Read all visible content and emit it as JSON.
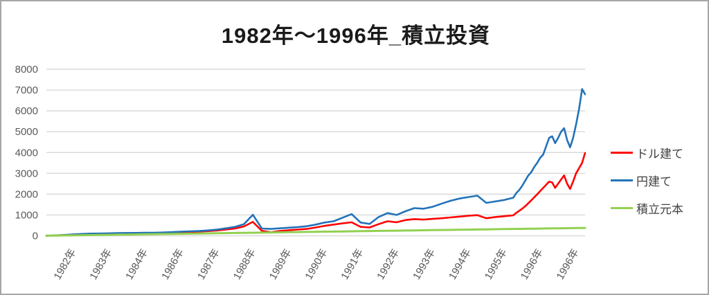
{
  "title": "1982年〜1996年_積立投資",
  "colors": {
    "grid": "#d9d9d9",
    "axis_text": "#595959",
    "title_text": "#1a1a1a",
    "frame_border": "#a6a6a6"
  },
  "legend": {
    "items": [
      "ドル建て",
      "円建て",
      "積立元本"
    ]
  },
  "chart_data": {
    "type": "line",
    "title": "1982年〜1996年_積立投資",
    "xlabel": "",
    "ylabel": "",
    "ylim": [
      0,
      8000
    ],
    "y_ticks": [
      0,
      1000,
      2000,
      3000,
      4000,
      5000,
      6000,
      7000,
      8000
    ],
    "x_tick_labels": [
      "1982年",
      "1983年",
      "1984年",
      "1986年",
      "1987年",
      "1988年",
      "1989年",
      "1990年",
      "1991年",
      "1992年",
      "1993年",
      "1994年",
      "1995年",
      "1996年",
      "1996年"
    ],
    "x_axis_note": "monthly cumulative investment Jan 1982 - Dec 1996, x_months is month index 0-180",
    "grid": true,
    "legend_position": "right",
    "x_months": [
      0,
      3,
      6,
      9,
      12,
      15,
      18,
      21,
      24,
      27,
      30,
      33,
      36,
      39,
      42,
      45,
      48,
      51,
      54,
      57,
      60,
      63,
      66,
      69,
      72,
      75,
      78,
      81,
      84,
      87,
      90,
      93,
      96,
      99,
      102,
      105,
      108,
      111,
      114,
      117,
      120,
      123,
      126,
      129,
      132,
      135,
      138,
      141,
      144,
      147,
      150,
      153,
      156,
      157,
      158,
      159,
      160,
      161,
      162,
      163,
      164,
      165,
      166,
      167,
      168,
      169,
      170,
      171,
      172,
      173,
      174,
      175,
      176,
      177,
      178,
      179,
      180
    ],
    "series": [
      {
        "name": "ドル建て",
        "color": "#ff0000",
        "values": [
          3,
          18,
          35,
          60,
          80,
          95,
          100,
          108,
          115,
          120,
          125,
          128,
          132,
          140,
          152,
          170,
          185,
          200,
          225,
          255,
          300,
          350,
          450,
          670,
          240,
          170,
          230,
          270,
          300,
          330,
          400,
          480,
          540,
          600,
          650,
          430,
          400,
          560,
          700,
          650,
          760,
          800,
          780,
          810,
          840,
          880,
          920,
          960,
          990,
          840,
          900,
          940,
          980,
          1100,
          1200,
          1300,
          1420,
          1560,
          1700,
          1850,
          1990,
          2150,
          2300,
          2450,
          2600,
          2560,
          2300,
          2500,
          2700,
          2900,
          2500,
          2250,
          2600,
          3000,
          3250,
          3500,
          3980
        ]
      },
      {
        "name": "円建て",
        "color": "#2272b9",
        "values": [
          3,
          20,
          40,
          70,
          90,
          105,
          110,
          120,
          130,
          135,
          140,
          145,
          150,
          160,
          175,
          200,
          215,
          230,
          260,
          300,
          360,
          430,
          560,
          1010,
          350,
          330,
          360,
          390,
          420,
          460,
          540,
          640,
          700,
          870,
          1040,
          640,
          570,
          900,
          1090,
          1000,
          1180,
          1330,
          1300,
          1390,
          1540,
          1680,
          1790,
          1860,
          1930,
          1580,
          1650,
          1720,
          1830,
          2050,
          2200,
          2400,
          2650,
          2890,
          3050,
          3300,
          3500,
          3750,
          3900,
          4300,
          4700,
          4780,
          4450,
          4700,
          5000,
          5170,
          4600,
          4250,
          4700,
          5350,
          6100,
          7050,
          6800
        ]
      },
      {
        "name": "積立元本",
        "color": "#92d050",
        "values": [
          5,
          11,
          17,
          24,
          30,
          36,
          42,
          48,
          55,
          61,
          67,
          73,
          80,
          86,
          92,
          98,
          104,
          111,
          117,
          123,
          129,
          135,
          142,
          148,
          154,
          160,
          166,
          173,
          179,
          185,
          191,
          198,
          204,
          210,
          216,
          222,
          229,
          235,
          241,
          247,
          253,
          260,
          266,
          272,
          278,
          284,
          291,
          297,
          303,
          309,
          316,
          322,
          328,
          330,
          332,
          334,
          336,
          338,
          340,
          342,
          345,
          347,
          349,
          351,
          353,
          355,
          357,
          359,
          361,
          363,
          365,
          368,
          370,
          372,
          374,
          376,
          378
        ]
      }
    ]
  }
}
